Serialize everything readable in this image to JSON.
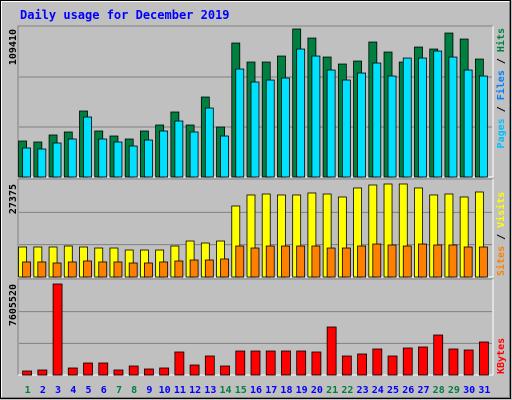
{
  "chart_data": {
    "type": "bar",
    "title": "Daily usage for December 2019",
    "categories": [
      "1",
      "2",
      "3",
      "4",
      "5",
      "6",
      "7",
      "8",
      "9",
      "10",
      "11",
      "12",
      "13",
      "14",
      "15",
      "16",
      "17",
      "18",
      "19",
      "20",
      "21",
      "22",
      "23",
      "24",
      "25",
      "26",
      "27",
      "28",
      "29",
      "30",
      "31"
    ],
    "category_colors": [
      "#008040",
      "#0000ff",
      "#0000ff",
      "#0000ff",
      "#0000ff",
      "#0000ff",
      "#008040",
      "#008040",
      "#0000ff",
      "#0000ff",
      "#0000ff",
      "#0000ff",
      "#0000ff",
      "#008040",
      "#008040",
      "#0000ff",
      "#0000ff",
      "#0000ff",
      "#0000ff",
      "#0000ff",
      "#008040",
      "#008040",
      "#0000ff",
      "#0000ff",
      "#0000ff",
      "#0000ff",
      "#0000ff",
      "#008040",
      "#008040",
      "#0000ff",
      "#0000ff"
    ],
    "label_separator": " / ",
    "panels": [
      {
        "ylim": [
          0,
          109410
        ],
        "yticks": [
          109410
        ],
        "axis_label": [
          {
            "text": "Pages",
            "color": "#00c0ff"
          },
          {
            "text": "Files",
            "color": "#0080ff"
          },
          {
            "text": "Hits",
            "color": "#008040"
          }
        ],
        "series": [
          {
            "name": "Hits",
            "color": "#008040",
            "values": [
              26600,
              25870,
              31040,
              33260,
              48780,
              34000,
              30300,
              28080,
              34000,
              38430,
              48040,
              38430,
              59120,
              36950,
              99030,
              84990,
              84990,
              89420,
              109410,
              102720,
              88680,
              83510,
              85720,
              99770,
              92380,
              84990,
              96070,
              94590,
              106420,
              101980,
              87200
            ]
          },
          {
            "name": "Files",
            "color": "#00e0ff",
            "values": [
              21430,
              20690,
              25130,
              28080,
              44340,
              28080,
              25870,
              22910,
              27340,
              33990,
              41380,
              33260,
              50990,
              30300,
              79810,
              70210,
              71680,
              73160,
              94590,
              89420,
              79070,
              71680,
              76860,
              84250,
              74640,
              87940,
              87940,
              93110,
              88680,
              79070,
              74640
            ]
          }
        ]
      },
      {
        "ylim": [
          0,
          27375
        ],
        "yticks": [
          27375
        ],
        "axis_label": [
          {
            "text": "Sites",
            "color": "#ff8000"
          },
          {
            "text": "Visits",
            "color": "#ffff00"
          }
        ],
        "series": [
          {
            "name": "Visits",
            "color": "#ffff00",
            "values": [
              8830,
              8830,
              8830,
              9120,
              8830,
              8530,
              8530,
              7940,
              7940,
              7940,
              9120,
              10590,
              10000,
              10590,
              20900,
              24140,
              24430,
              24140,
              24140,
              24730,
              24430,
              23550,
              26200,
              27080,
              27375,
              27375,
              26200,
              24140,
              24430,
              23550,
              25020
            ]
          },
          {
            "name": "Sites",
            "color": "#ff8000",
            "values": [
              4420,
              4420,
              4120,
              4420,
              4710,
              4420,
              4420,
              4120,
              4120,
              4420,
              4710,
              5000,
              5000,
              5300,
              9120,
              8530,
              9120,
              9120,
              9120,
              9120,
              8530,
              8530,
              9120,
              9710,
              9420,
              9120,
              9710,
              9420,
              9420,
              8830,
              8830
            ]
          }
        ]
      },
      {
        "ylim": [
          0,
          7605520
        ],
        "yticks": [
          7605520
        ],
        "axis_label": [
          {
            "text": "KBytes",
            "color": "#ff0000"
          }
        ],
        "series": [
          {
            "name": "KBytes",
            "color": "#ff0000",
            "values": [
              334300,
              417900,
              7605520,
              585000,
              1002900,
              1002900,
              417900,
              752200,
              501500,
              585000,
              1922300,
              835800,
              1588000,
              752200,
              2005800,
              2005800,
              2005800,
              2005800,
              2005800,
              1922300,
              4011700,
              1588000,
              1755100,
              2173000,
              1588000,
              2256600,
              2340200,
              3343100,
              2173000,
              2089400,
              2758000
            ]
          }
        ]
      }
    ]
  }
}
